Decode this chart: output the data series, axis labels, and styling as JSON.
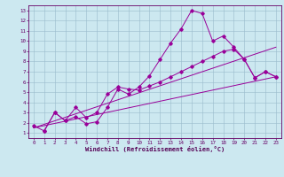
{
  "xlabel": "Windchill (Refroidissement éolien,°C)",
  "bg_color": "#cce8f0",
  "line_color": "#990099",
  "grid_color": "#99bbcc",
  "xlim": [
    -0.5,
    23.5
  ],
  "ylim": [
    0.5,
    13.5
  ],
  "xticks": [
    0,
    1,
    2,
    3,
    4,
    5,
    6,
    7,
    8,
    9,
    10,
    11,
    12,
    13,
    14,
    15,
    16,
    17,
    18,
    19,
    20,
    21,
    22,
    23
  ],
  "yticks": [
    1,
    2,
    3,
    4,
    5,
    6,
    7,
    8,
    9,
    10,
    11,
    12,
    13
  ],
  "line1_x": [
    0,
    1,
    2,
    3,
    4,
    5,
    6,
    7,
    8,
    9,
    10,
    11,
    12,
    13,
    14,
    15,
    16,
    17,
    18,
    19,
    20,
    21,
    22,
    23
  ],
  "line1_y": [
    1.7,
    1.2,
    3.0,
    2.2,
    2.6,
    1.9,
    2.1,
    3.5,
    5.3,
    4.8,
    5.5,
    6.6,
    8.2,
    9.8,
    11.2,
    13.0,
    12.7,
    10.0,
    10.5,
    9.4,
    8.2,
    6.4,
    7.0,
    6.5
  ],
  "line2_x": [
    1,
    2,
    3,
    4,
    5,
    6,
    7,
    8,
    9,
    10,
    11,
    12,
    13,
    14,
    15,
    16,
    17,
    18,
    19,
    20,
    21,
    22,
    23
  ],
  "line2_y": [
    1.2,
    3.0,
    2.2,
    3.5,
    2.5,
    3.0,
    4.8,
    5.5,
    5.3,
    5.2,
    5.6,
    6.0,
    6.5,
    7.0,
    7.5,
    8.0,
    8.5,
    9.0,
    9.2,
    8.2,
    6.4,
    7.0,
    6.5
  ],
  "line3_x": [
    0,
    23
  ],
  "line3_y": [
    1.5,
    6.5
  ],
  "line4_x": [
    0,
    23
  ],
  "line4_y": [
    1.5,
    9.4
  ],
  "font": "monospace",
  "axis_fontsize": 5.0,
  "tick_fontsize": 4.2
}
